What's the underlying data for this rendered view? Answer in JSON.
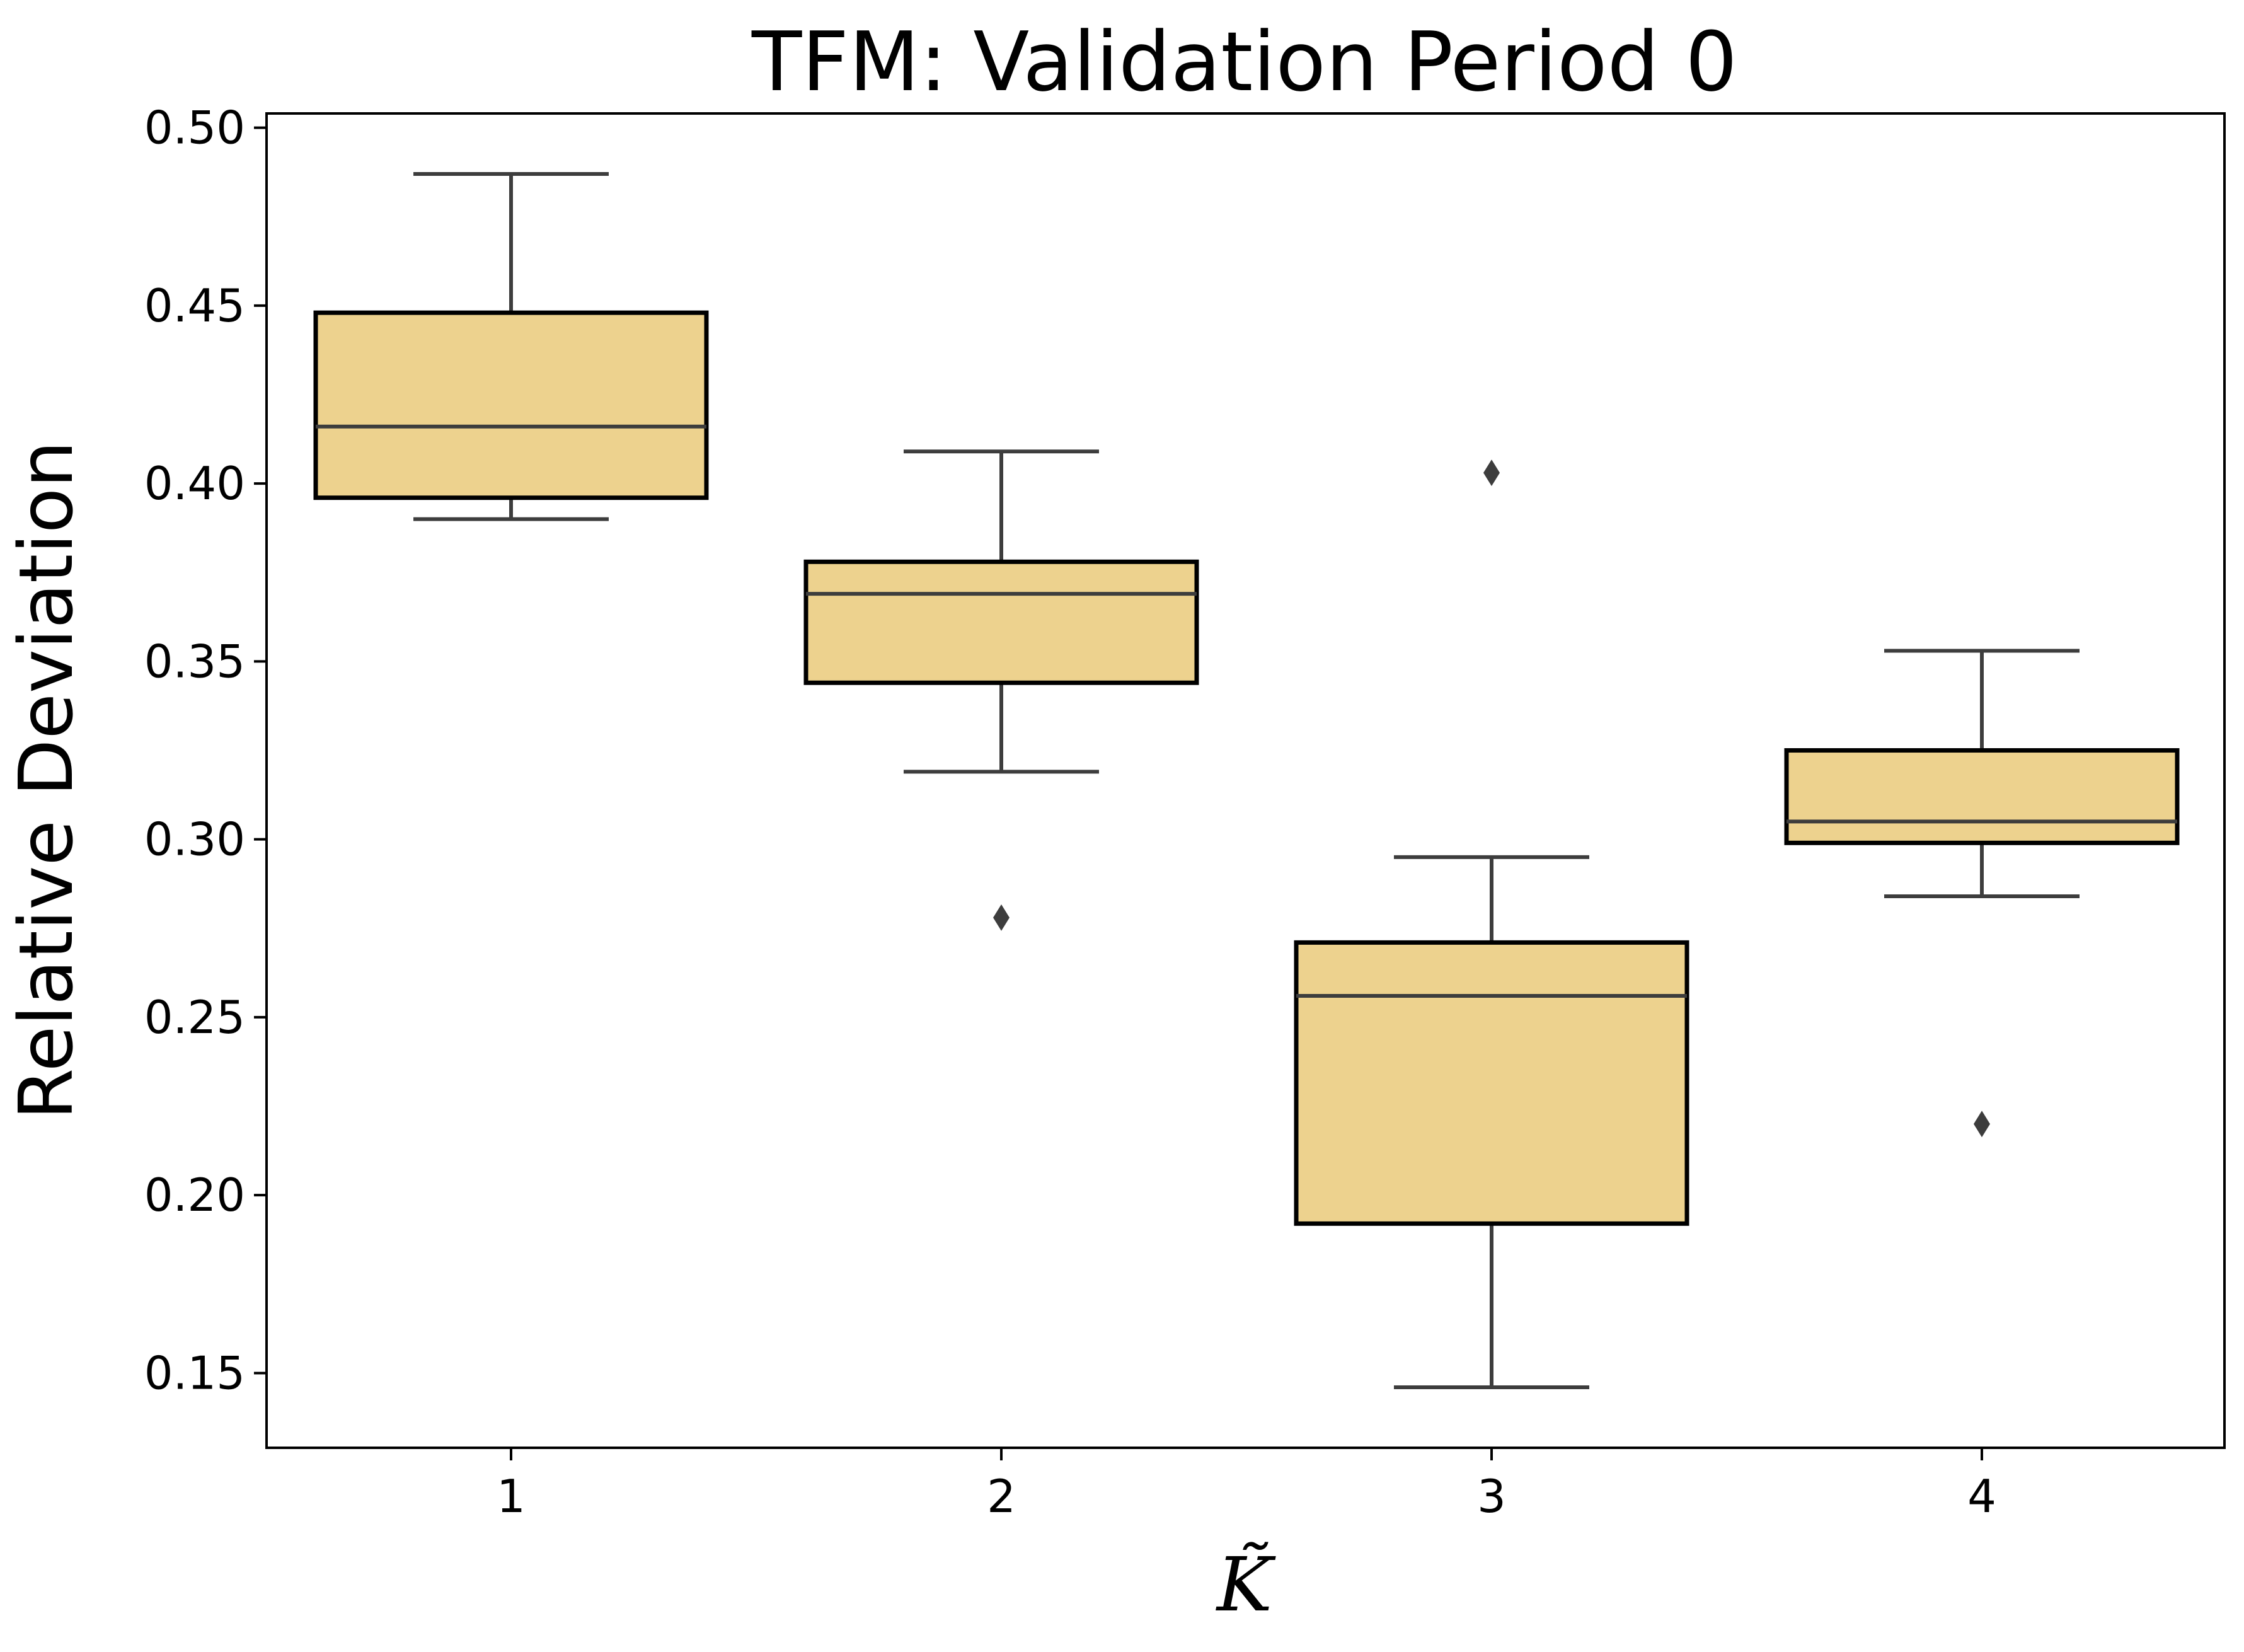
{
  "chart_data": {
    "type": "box",
    "title": "TFM: Validation Period 0",
    "xlabel": "K̃",
    "ylabel": "Relative Deviation",
    "ylim": [
      0.129,
      0.504
    ],
    "yticks": [
      0.15,
      0.2,
      0.25,
      0.3,
      0.35,
      0.4,
      0.45,
      0.5
    ],
    "ytick_labels": [
      "0.15",
      "0.20",
      "0.25",
      "0.30",
      "0.35",
      "0.40",
      "0.45",
      "0.50"
    ],
    "categories": [
      "1",
      "2",
      "3",
      "4"
    ],
    "boxes": [
      {
        "category": "1",
        "whisker_low": 0.39,
        "q1": 0.396,
        "median": 0.416,
        "q3": 0.448,
        "whisker_high": 0.487,
        "outliers": []
      },
      {
        "category": "2",
        "whisker_low": 0.319,
        "q1": 0.344,
        "median": 0.369,
        "q3": 0.378,
        "whisker_high": 0.409,
        "outliers": [
          0.278
        ]
      },
      {
        "category": "3",
        "whisker_low": 0.146,
        "q1": 0.192,
        "median": 0.256,
        "q3": 0.271,
        "whisker_high": 0.295,
        "outliers": [
          0.403
        ]
      },
      {
        "category": "4",
        "whisker_low": 0.284,
        "q1": 0.299,
        "median": 0.305,
        "q3": 0.325,
        "whisker_high": 0.353,
        "outliers": [
          0.22
        ]
      }
    ],
    "colors": {
      "box_fill": "#edd28e",
      "box_edge": "#000000",
      "whisker": "#3d3d3d",
      "outlier": "#3d3d3d"
    },
    "grid": false
  }
}
